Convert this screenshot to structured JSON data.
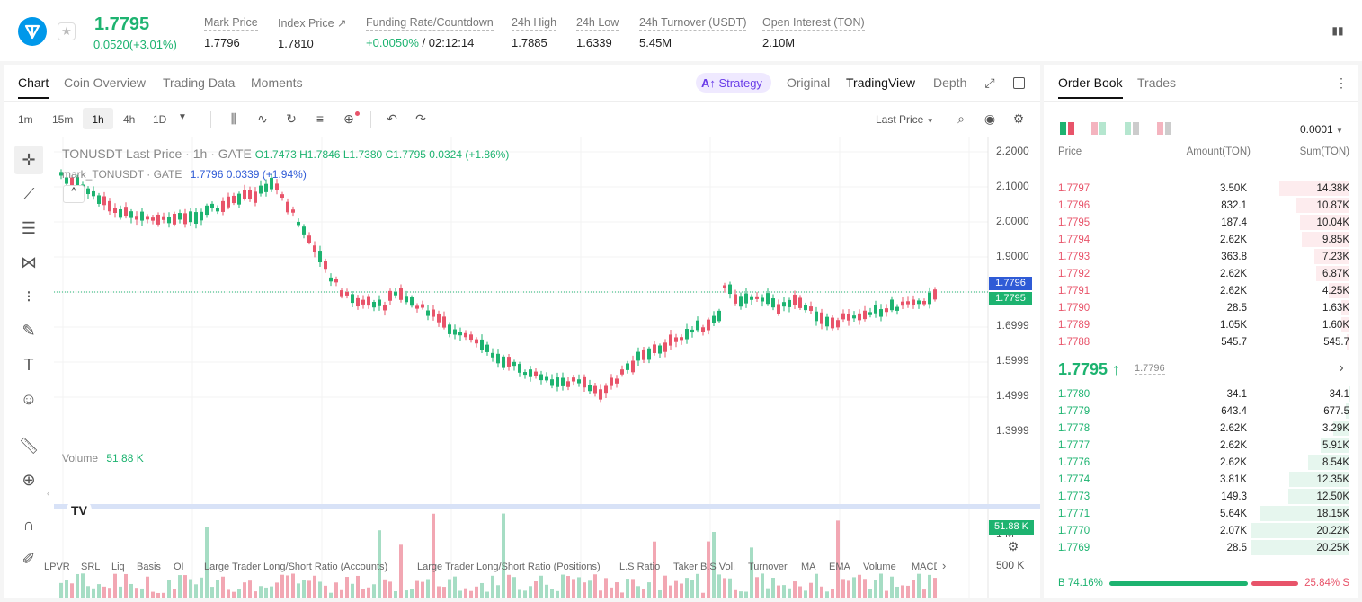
{
  "ticker": {
    "last": "1.7795",
    "change": "0.0520(+3.01%)"
  },
  "stats": [
    {
      "label": "Mark Price",
      "value": "1.7796"
    },
    {
      "label": "Index Price ↗",
      "value": "1.7810"
    },
    {
      "label": "Funding Rate/Countdown",
      "value_pos": "+0.0050%",
      "value_rest": " / 02:12:14"
    },
    {
      "label": "24h High",
      "value": "1.7885"
    },
    {
      "label": "24h Low",
      "value": "1.6339"
    },
    {
      "label": "24h Turnover (USDT)",
      "value": "5.45M"
    },
    {
      "label": "Open Interest (TON)",
      "value": "2.10M"
    }
  ],
  "chart_tabs": [
    "Chart",
    "Coin Overview",
    "Trading Data",
    "Moments"
  ],
  "view_tabs": {
    "strategy": "Strategy",
    "original": "Original",
    "tradingview": "TradingView",
    "depth": "Depth"
  },
  "intervals": [
    "1m",
    "15m",
    "1h",
    "4h",
    "1D"
  ],
  "price_type": "Last Price",
  "legend": {
    "symbol": "TONUSDT Last Price · 1h · GATE",
    "o": "O1.7473",
    "h": "H1.7846",
    "l": "L1.7380",
    "c": "C1.7795",
    "chg": "0.0324 (+1.86%)",
    "mark": "mark_TONUSDT · GATE",
    "mark_val": "1.7796",
    "mark_chg": "0.0339 (+1.94%)",
    "vol_label": "Volume",
    "vol_val": "51.88 K"
  },
  "price_labels": [
    "2.2000",
    "2.1000",
    "2.0000",
    "1.9000",
    "1.6999",
    "1.5999",
    "1.4999",
    "1.3999"
  ],
  "price_tags": {
    "mark": "1.7796",
    "last": "1.7795",
    "vol": "51.88 K"
  },
  "vol_axis": [
    "1 M",
    "500 K"
  ],
  "time_labels": [
    "2",
    "12:00",
    "3",
    "12:00",
    "4",
    "12:00",
    "5",
    "12:00",
    "6",
    "12:00",
    "7",
    "12:00",
    "8",
    "12:00",
    "9"
  ],
  "indicators": [
    "LPVR",
    "SRL",
    "Liq",
    "Basis",
    "OI",
    "Large Trader Long/Short Ratio (Accounts)",
    "Large Trader Long/Short Ratio (Positions)",
    "L.S Ratio",
    "Taker B.S Vol.",
    "Turnover",
    "MA",
    "EMA",
    "Volume",
    "MACD"
  ],
  "orderbook": {
    "tabs": [
      "Order Book",
      "Trades"
    ],
    "precision": "0.0001",
    "headers": [
      "Price",
      "Amount(TON)",
      "Sum(TON)"
    ],
    "asks": [
      [
        "1.7797",
        "3.50K",
        "14.38K"
      ],
      [
        "1.7796",
        "832.1",
        "10.87K"
      ],
      [
        "1.7795",
        "187.4",
        "10.04K"
      ],
      [
        "1.7794",
        "2.62K",
        "9.85K"
      ],
      [
        "1.7793",
        "363.8",
        "7.23K"
      ],
      [
        "1.7792",
        "2.62K",
        "6.87K"
      ],
      [
        "1.7791",
        "2.62K",
        "4.25K"
      ],
      [
        "1.7790",
        "28.5",
        "1.63K"
      ],
      [
        "1.7789",
        "1.05K",
        "1.60K"
      ],
      [
        "1.7788",
        "545.7",
        "545.7"
      ]
    ],
    "mid": "1.7795 ↑",
    "mid_mark": "1.7796",
    "bids": [
      [
        "1.7780",
        "34.1",
        "34.1"
      ],
      [
        "1.7779",
        "643.4",
        "677.5"
      ],
      [
        "1.7778",
        "2.62K",
        "3.29K"
      ],
      [
        "1.7777",
        "2.62K",
        "5.91K"
      ],
      [
        "1.7776",
        "2.62K",
        "8.54K"
      ],
      [
        "1.7774",
        "3.81K",
        "12.35K"
      ],
      [
        "1.7773",
        "149.3",
        "12.50K"
      ],
      [
        "1.7771",
        "5.64K",
        "18.15K"
      ],
      [
        "1.7770",
        "2.07K",
        "20.22K"
      ],
      [
        "1.7769",
        "28.5",
        "20.25K"
      ]
    ],
    "buy_ratio": "B 74.16%",
    "sell_ratio": "25.84% S",
    "buy_pct": 74.16
  },
  "colors": {
    "up": "#1db370",
    "down": "#e8546a"
  }
}
